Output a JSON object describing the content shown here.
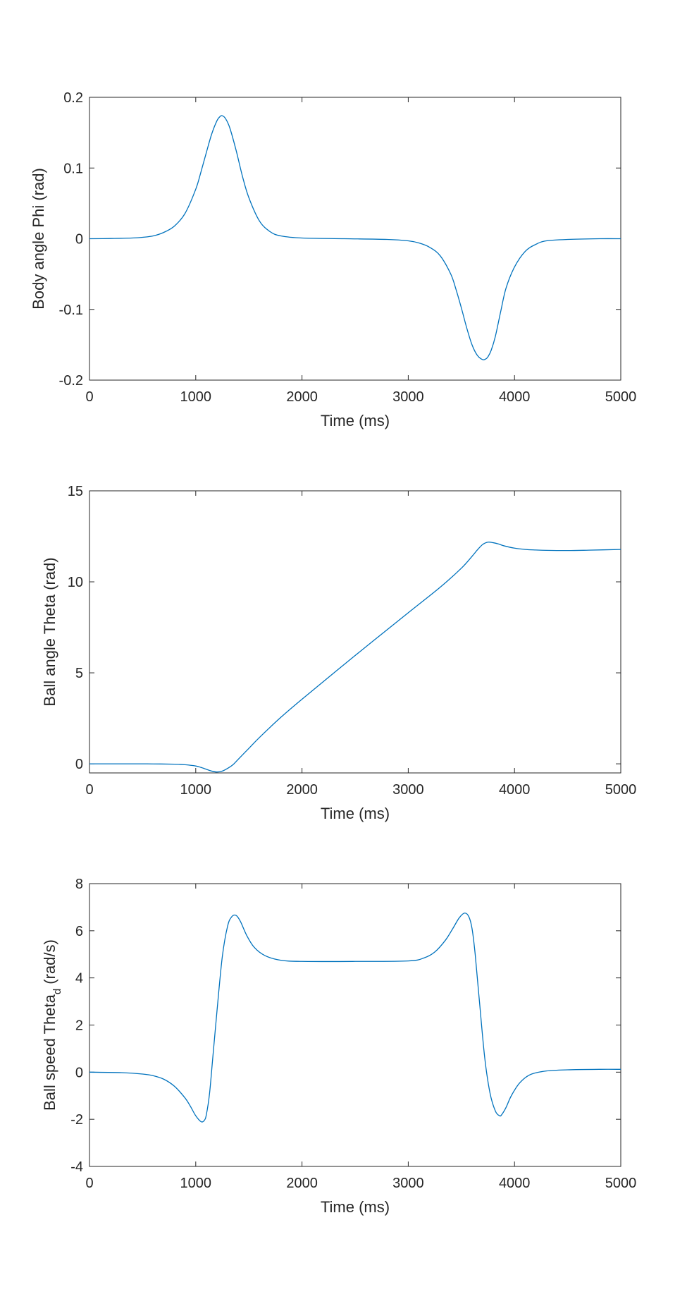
{
  "chart_data": [
    {
      "type": "line",
      "ylabel": "Body angle Phi (rad)",
      "xlabel": "Time (ms)",
      "xlim": [
        0,
        5000
      ],
      "ylim": [
        -0.2,
        0.2
      ],
      "xticks": [
        0,
        1000,
        2000,
        3000,
        4000,
        5000
      ],
      "xtick_labels": [
        "0",
        "1000",
        "2000",
        "3000",
        "4000",
        "5000"
      ],
      "yticks": [
        -0.2,
        -0.1,
        0,
        0.1,
        0.2
      ],
      "ytick_labels": [
        "-0.2",
        "-0.1",
        "0",
        "0.1",
        "0.2"
      ],
      "grid": false,
      "color": "#0072BD",
      "series": [
        {
          "x": [
            0,
            200,
            400,
            500,
            600,
            700,
            800,
            900,
            1000,
            1050,
            1100,
            1150,
            1200,
            1230,
            1250,
            1280,
            1320,
            1380,
            1440,
            1500,
            1600,
            1700,
            1800,
            2000,
            2400,
            2800,
            3000,
            3100,
            3200,
            3300,
            3400,
            3450,
            3500,
            3550,
            3600,
            3650,
            3700,
            3730,
            3750,
            3780,
            3820,
            3870,
            3920,
            4000,
            4100,
            4200,
            4300,
            4500,
            4800,
            5000
          ],
          "y": [
            0,
            0.0003,
            0.001,
            0.002,
            0.004,
            0.009,
            0.018,
            0.036,
            0.07,
            0.095,
            0.122,
            0.148,
            0.167,
            0.173,
            0.174,
            0.17,
            0.157,
            0.125,
            0.088,
            0.058,
            0.025,
            0.01,
            0.004,
            0.001,
            0,
            -0.001,
            -0.003,
            -0.006,
            -0.012,
            -0.024,
            -0.05,
            -0.072,
            -0.098,
            -0.126,
            -0.15,
            -0.165,
            -0.171,
            -0.17,
            -0.167,
            -0.158,
            -0.138,
            -0.103,
            -0.07,
            -0.04,
            -0.018,
            -0.008,
            -0.003,
            -0.001,
            0,
            0
          ]
        }
      ]
    },
    {
      "type": "line",
      "ylabel": "Ball angle Theta (rad)",
      "xlabel": "Time (ms)",
      "xlim": [
        0,
        5000
      ],
      "ylim": [
        -0.5,
        15
      ],
      "xticks": [
        0,
        1000,
        2000,
        3000,
        4000,
        5000
      ],
      "xtick_labels": [
        "0",
        "1000",
        "2000",
        "3000",
        "4000",
        "5000"
      ],
      "yticks": [
        0,
        5,
        10,
        15
      ],
      "ytick_labels": [
        "0",
        "5",
        "10",
        "15"
      ],
      "grid": false,
      "color": "#0072BD",
      "series": [
        {
          "x": [
            0,
            400,
            600,
            800,
            900,
            1000,
            1050,
            1100,
            1150,
            1200,
            1250,
            1300,
            1350,
            1400,
            1500,
            1600,
            1800,
            2000,
            2500,
            3000,
            3300,
            3500,
            3600,
            3650,
            3700,
            3750,
            3800,
            3850,
            3900,
            4000,
            4100,
            4200,
            4300,
            4500,
            4700,
            5000
          ],
          "y": [
            0,
            0,
            -0.005,
            -0.02,
            -0.05,
            -0.12,
            -0.2,
            -0.3,
            -0.4,
            -0.45,
            -0.4,
            -0.25,
            -0.05,
            0.25,
            0.85,
            1.45,
            2.55,
            3.55,
            5.95,
            8.3,
            9.7,
            10.75,
            11.4,
            11.75,
            12.05,
            12.18,
            12.15,
            12.08,
            11.98,
            11.85,
            11.78,
            11.75,
            11.73,
            11.72,
            11.74,
            11.78
          ]
        }
      ]
    },
    {
      "type": "line",
      "ylabel": "Ball speed Theta",
      "ylabel_subscript": "d",
      "ylabel_unit": "(rad/s)",
      "xlabel": "Time (ms)",
      "xlim": [
        0,
        5000
      ],
      "ylim": [
        -4,
        8
      ],
      "xticks": [
        0,
        1000,
        2000,
        3000,
        4000,
        5000
      ],
      "xtick_labels": [
        "0",
        "1000",
        "2000",
        "3000",
        "4000",
        "5000"
      ],
      "yticks": [
        -4,
        -2,
        0,
        2,
        4,
        6,
        8
      ],
      "ytick_labels": [
        "-4",
        "-2",
        "0",
        "2",
        "4",
        "6",
        "8"
      ],
      "grid": false,
      "color": "#0072BD",
      "series": [
        {
          "x": [
            0,
            300,
            500,
            600,
            700,
            800,
            900,
            950,
            1000,
            1050,
            1080,
            1100,
            1130,
            1160,
            1200,
            1250,
            1300,
            1340,
            1380,
            1420,
            1480,
            1550,
            1650,
            1800,
            2000,
            2500,
            3000,
            3150,
            3250,
            3350,
            3420,
            3480,
            3530,
            3570,
            3600,
            3630,
            3670,
            3720,
            3770,
            3820,
            3860,
            3880,
            3920,
            3970,
            4050,
            4150,
            4300,
            4500,
            4800,
            5000
          ],
          "y": [
            0,
            -0.02,
            -0.08,
            -0.15,
            -0.3,
            -0.6,
            -1.1,
            -1.45,
            -1.85,
            -2.1,
            -2.05,
            -1.8,
            -0.9,
            0.6,
            2.6,
            4.9,
            6.2,
            6.6,
            6.65,
            6.4,
            5.8,
            5.3,
            4.95,
            4.75,
            4.7,
            4.7,
            4.72,
            4.85,
            5.1,
            5.6,
            6.1,
            6.55,
            6.75,
            6.6,
            6.1,
            5.0,
            3.0,
            0.6,
            -0.9,
            -1.65,
            -1.85,
            -1.8,
            -1.5,
            -1.0,
            -0.45,
            -0.1,
            0.05,
            0.1,
            0.12,
            0.12
          ]
        }
      ]
    }
  ]
}
